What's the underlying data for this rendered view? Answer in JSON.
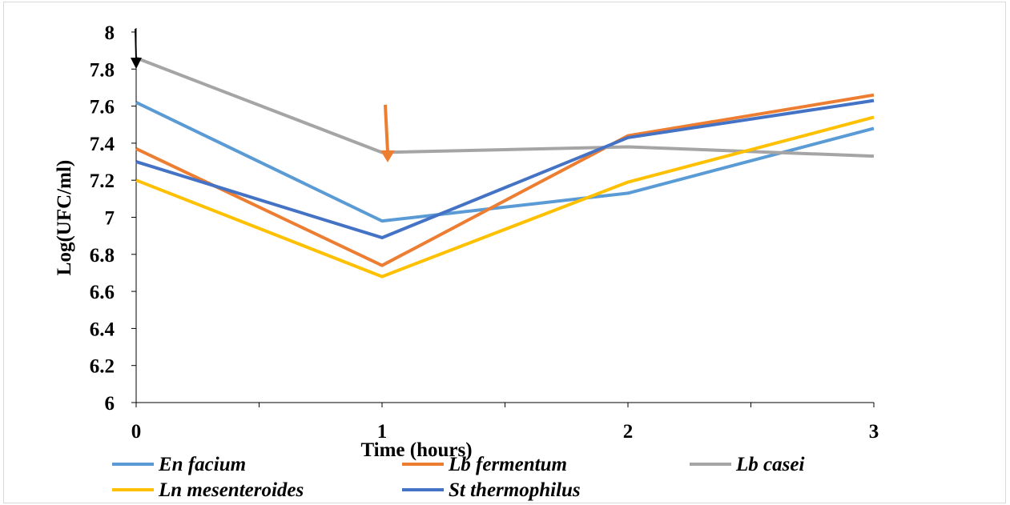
{
  "chart_data": {
    "type": "line",
    "x": [
      0,
      1,
      2,
      3
    ],
    "xticks": [
      "0",
      "1",
      "2",
      "3"
    ],
    "yticks": [
      "6",
      "6.2",
      "6.4",
      "6.6",
      "6.8",
      "7",
      "7.2",
      "7.4",
      "7.6",
      "7.8",
      "8"
    ],
    "xlabel": "Time (hours)",
    "ylabel": "Log(UFC/ml)",
    "xlim": [
      0,
      3
    ],
    "ylim": [
      6,
      8
    ],
    "grid": false,
    "legend_position": "bottom",
    "series": [
      {
        "name": "En facium",
        "color": "#5b9bd5",
        "values": [
          7.62,
          6.98,
          7.13,
          7.48
        ]
      },
      {
        "name": "Lb fermentum",
        "color": "#ed7d31",
        "values": [
          7.37,
          6.74,
          7.44,
          7.66
        ]
      },
      {
        "name": "Lb casei",
        "color": "#a5a5a5",
        "values": [
          7.86,
          7.35,
          7.38,
          7.33
        ]
      },
      {
        "name": "Ln mesenteroides",
        "color": "#ffc000",
        "values": [
          7.2,
          6.68,
          7.19,
          7.54
        ]
      },
      {
        "name": "St thermophilus",
        "color": "#4472c4",
        "values": [
          7.3,
          6.89,
          7.43,
          7.63
        ]
      }
    ],
    "annotations": [
      {
        "type": "arrow",
        "color": "#000000",
        "points_to": {
          "x": 0,
          "y": 7.9
        }
      },
      {
        "type": "arrow",
        "color": "#ed7d31",
        "points_to": {
          "x": 1,
          "y": 7.4
        }
      }
    ]
  }
}
